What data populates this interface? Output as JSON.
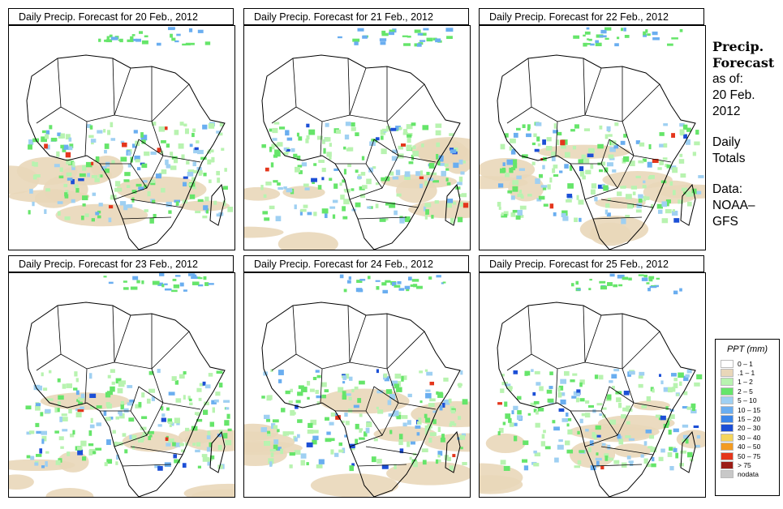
{
  "panels": [
    {
      "title": "Daily Precip. Forecast for  20 Feb., 2012"
    },
    {
      "title": "Daily Precip. Forecast for  21 Feb., 2012"
    },
    {
      "title": "Daily Precip. Forecast for  22 Feb., 2012"
    },
    {
      "title": "Daily Precip. Forecast for  23 Feb., 2012"
    },
    {
      "title": "Daily Precip. Forecast for  24 Feb., 2012"
    },
    {
      "title": "Daily Precip. Forecast for  25 Feb., 2012"
    }
  ],
  "side": {
    "heading1": "Precip.",
    "heading2": "Forecast",
    "asof": "as of:",
    "date1": "20 Feb.",
    "date2": "2012",
    "daily1": "Daily",
    "daily2": "Totals",
    "data1": "Data:",
    "data2": "NOAA–",
    "data3": "GFS"
  },
  "legend": {
    "title": "PPT (mm)",
    "items": [
      {
        "label": "0 – 1",
        "color": "#ffffff"
      },
      {
        "label": ".1 – 1",
        "color": "#e9d7b9"
      },
      {
        "label": "1 – 2",
        "color": "#b8f3b0"
      },
      {
        "label": "2 – 5",
        "color": "#66e56a"
      },
      {
        "label": "5 – 10",
        "color": "#9fd0f2"
      },
      {
        "label": "10 – 15",
        "color": "#6aaef0"
      },
      {
        "label": "15 – 20",
        "color": "#3b86ea"
      },
      {
        "label": "20 – 30",
        "color": "#1c4fd6"
      },
      {
        "label": "30 – 40",
        "color": "#f5d55a"
      },
      {
        "label": "40 – 50",
        "color": "#f39b22"
      },
      {
        "label": "50 – 75",
        "color": "#e4361c"
      },
      {
        "label": "> 75",
        "color": "#9b1c16"
      },
      {
        "label": "nodata",
        "color": "#c8c8c8"
      }
    ]
  }
}
